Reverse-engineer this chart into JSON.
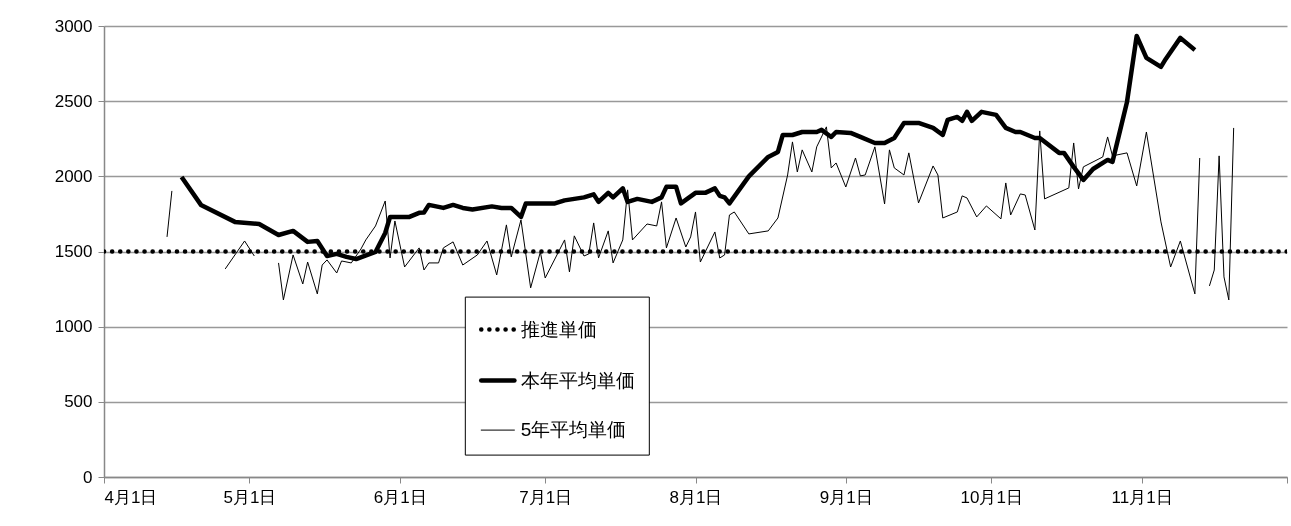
{
  "chart_data": {
    "type": "line",
    "xlim": [
      "--04-01",
      "--12-01"
    ],
    "xticks": [
      {
        "value": "--04-01",
        "label": "4月1日"
      },
      {
        "value": "--05-01",
        "label": "5月1日"
      },
      {
        "value": "--06-01",
        "label": "6月1日"
      },
      {
        "value": "--07-01",
        "label": "7月1日"
      },
      {
        "value": "--08-01",
        "label": "8月1日"
      },
      {
        "value": "--09-01",
        "label": "9月1日"
      },
      {
        "value": "--10-01",
        "label": "10月1日"
      },
      {
        "value": "--11-01",
        "label": "11月1日"
      },
      {
        "value": "--12-01",
        "label": null
      }
    ],
    "ylim": [
      0,
      3000
    ],
    "yticks": [
      0,
      500,
      1000,
      1500,
      2000,
      2500,
      3000
    ],
    "grid": "y",
    "legend": "bottom",
    "line_style": "solid",
    "ref_lines": [
      {
        "axis": "y",
        "value": 1500,
        "label": "推進単価",
        "color": "#000000",
        "line_style": "dotted"
      }
    ],
    "series": [
      {
        "name": "本年平均単価",
        "color": "#000000",
        "x": [
          "--04-17",
          "--04-21",
          "--04-28",
          "--05-03",
          "--05-07",
          "--05-10",
          "--05-13",
          "--05-15",
          "--05-17",
          "--05-19",
          "--05-21",
          "--05-23",
          "--05-27",
          "--05-29",
          "--05-30",
          "--06-03",
          "--06-05",
          "--06-06",
          "--06-07",
          "--06-10",
          "--06-12",
          "--06-14",
          "--06-16",
          "--06-20",
          "--06-22",
          "--06-24",
          "--06-26",
          "--06-27",
          "--07-01",
          "--07-03",
          "--07-05",
          "--07-09",
          "--07-11",
          "--07-12",
          "--07-14",
          "--07-15",
          "--07-17",
          "--07-18",
          "--07-20",
          "--07-23",
          "--07-25",
          "--07-26",
          "--07-28",
          "--07-29",
          "--08-01",
          "--08-03",
          "--08-05",
          "--08-06",
          "--08-07",
          "--08-08",
          "--08-12",
          "--08-16",
          "--08-18",
          "--08-19",
          "--08-21",
          "--08-23",
          "--08-26",
          "--08-27",
          "--08-29",
          "--08-30",
          "--09-02",
          "--09-04",
          "--09-07",
          "--09-09",
          "--09-11",
          "--09-13",
          "--09-16",
          "--09-19",
          "--09-21",
          "--09-22",
          "--09-24",
          "--09-25",
          "--09-26",
          "--09-27",
          "--09-29",
          "--10-02",
          "--10-04",
          "--10-06",
          "--10-07",
          "--10-10",
          "--10-11",
          "--10-15",
          "--10-16",
          "--10-18",
          "--10-20",
          "--10-22",
          "--10-25",
          "--10-26",
          "--10-29",
          "--10-31",
          "--11-02",
          "--11-05",
          "--11-06",
          "--11-09",
          "--11-12"
        ],
        "values": [
          1996,
          1810,
          1697,
          1683,
          1610,
          1637,
          1564,
          1570,
          1470,
          1484,
          1464,
          1450,
          1497,
          1623,
          1730,
          1730,
          1757,
          1760,
          1810,
          1790,
          1810,
          1790,
          1780,
          1800,
          1790,
          1790,
          1730,
          1820,
          1820,
          1820,
          1840,
          1860,
          1880,
          1830,
          1890,
          1860,
          1920,
          1830,
          1850,
          1830,
          1860,
          1930,
          1930,
          1820,
          1890,
          1890,
          1920,
          1870,
          1860,
          1820,
          2000,
          2129,
          2162,
          2275,
          2275,
          2295,
          2295,
          2309,
          2262,
          2295,
          2289,
          2262,
          2222,
          2222,
          2255,
          2355,
          2355,
          2322,
          2275,
          2375,
          2395,
          2369,
          2429,
          2369,
          2429,
          2409,
          2322,
          2295,
          2295,
          2255,
          2255,
          2156,
          2156,
          2063,
          1976,
          2049,
          2109,
          2096,
          2495,
          2934,
          2788,
          2728,
          2781,
          2921,
          2841
        ]
      },
      {
        "name": "5年平均単価",
        "color": "#000000",
        "x": [
          "--04-14",
          "--04-15",
          "--04-20",
          "--04-26",
          "--04-30",
          "--05-02",
          "--05-05",
          "--05-07",
          "--05-08",
          "--05-10",
          "--05-12",
          "--05-13",
          "--05-15",
          "--05-16",
          "--05-17",
          "--05-19",
          "--05-20",
          "--05-22",
          "--05-24",
          "--05-25",
          "--05-27",
          "--05-29",
          "--05-30",
          "--05-31",
          "--06-02",
          "--06-05",
          "--06-06",
          "--06-07",
          "--06-09",
          "--06-10",
          "--06-12",
          "--06-14",
          "--06-17",
          "--06-19",
          "--06-21",
          "--06-23",
          "--06-24",
          "--06-26",
          "--06-28",
          "--06-30",
          "--07-01",
          "--07-05",
          "--07-06",
          "--07-07",
          "--07-09",
          "--07-10",
          "--07-11",
          "--07-12",
          "--07-14",
          "--07-15",
          "--07-17",
          "--07-18",
          "--07-19",
          "--07-22",
          "--07-24",
          "--07-25",
          "--07-26",
          "--07-28",
          "--07-30",
          "--07-31",
          "--08-01",
          "--08-02",
          "--08-05",
          "--08-06",
          "--08-07",
          "--08-08",
          "--08-09",
          "--08-12",
          "--08-16",
          "--08-18",
          "--08-20",
          "--08-21",
          "--08-22",
          "--08-23",
          "--08-25",
          "--08-26",
          "--08-28",
          "--08-29",
          "--08-30",
          "--09-01",
          "--09-03",
          "--09-04",
          "--09-05",
          "--09-07",
          "--09-09",
          "--09-10",
          "--09-11",
          "--09-13",
          "--09-14",
          "--09-16",
          "--09-19",
          "--09-20",
          "--09-21",
          "--09-24",
          "--09-25",
          "--09-26",
          "--09-28",
          "--09-30",
          "--10-03",
          "--10-04",
          "--10-05",
          "--10-07",
          "--10-08",
          "--10-10",
          "--10-11",
          "--10-12",
          "--10-17",
          "--10-18",
          "--10-19",
          "--10-20",
          "--10-24",
          "--10-25",
          "--10-26",
          "--10-29",
          "--10-31",
          "--11-02",
          "--11-05",
          "--11-07",
          "--11-09",
          "--11-12",
          "--11-13",
          "--11-14",
          "--11-15",
          "--11-16",
          "--11-17",
          "--11-18",
          "--11-19",
          "--11-20"
        ],
        "values": [
          1597,
          1903,
          null,
          1384,
          1570,
          1470,
          null,
          1424,
          1178,
          1477,
          1284,
          1430,
          1218,
          1410,
          1444,
          1357,
          1437,
          1424,
          1517,
          1577,
          1670,
          1836,
          1457,
          1703,
          1397,
          1524,
          1377,
          1424,
          1424,
          1524,
          1564,
          1410,
          1477,
          1570,
          1344,
          1677,
          1464,
          1710,
          1258,
          1497,
          1324,
          1577,
          1364,
          1604,
          1470,
          1484,
          1690,
          1457,
          1637,
          1424,
          1577,
          1910,
          1577,
          1683,
          1670,
          1830,
          1524,
          1723,
          1530,
          1597,
          1763,
          1430,
          1630,
          1457,
          1477,
          1743,
          1763,
          1617,
          1637,
          1723,
          2009,
          2229,
          2029,
          2176,
          2029,
          2196,
          2329,
          2056,
          2089,
          1929,
          2122,
          2003,
          2009,
          2196,
          1816,
          2176,
          2056,
          2009,
          2156,
          1823,
          2069,
          2009,
          1723,
          1763,
          1870,
          1856,
          1730,
          1803,
          1717,
          1956,
          1743,
          1883,
          1876,
          1643,
          2302,
          1850,
          1923,
          2222,
          1916,
          2063,
          2129,
          2262,
          2136,
          2156,
          1936,
          2295,
          1697,
          1397,
          1570,
          1218,
          2122,
          null,
          1271,
          1377,
          2136,
          1331,
          1178,
          2322
        ]
      }
    ]
  }
}
